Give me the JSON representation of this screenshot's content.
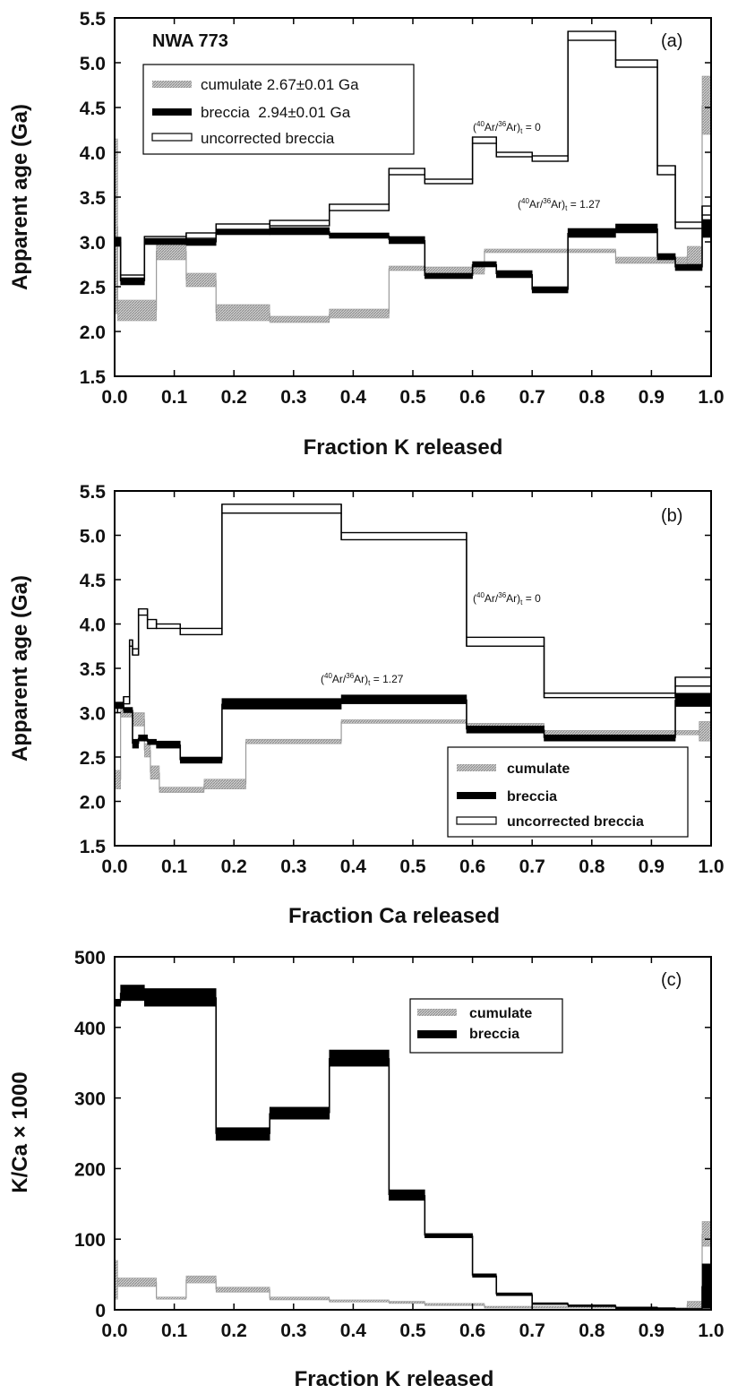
{
  "colors": {
    "cumulate": "#a9a9a9",
    "breccia": "#000000",
    "uncorrected": "#000000"
  },
  "chart_data": [
    {
      "panel": "(a)",
      "type": "line",
      "title": "NWA 773",
      "xlabel": "Fraction K released",
      "ylabel": "Apparent age (Ga)",
      "xlim": [
        0,
        1
      ],
      "ylim": [
        1.5,
        5.5
      ],
      "xticks": [
        "0.0",
        "0.1",
        "0.2",
        "0.3",
        "0.4",
        "0.5",
        "0.6",
        "0.7",
        "0.8",
        "0.9",
        "1.0"
      ],
      "yticks": [
        "1.5",
        "2.0",
        "2.5",
        "3.0",
        "3.5",
        "4.0",
        "4.5",
        "5.0",
        "5.5"
      ],
      "legend": [
        "cumulate 2.67±0.01 Ga",
        "breccia  2.94±0.01 Ga",
        "uncorrected breccia"
      ],
      "legend_position": "top-left",
      "annotations": [
        {
          "pre": "(",
          "sup": "40",
          "mid": "Ar/",
          "sup2": "36",
          "post": "Ar)",
          "sub": "t",
          "tail": " = 0",
          "x": 0.6,
          "y": 4.18
        },
        {
          "pre": "(",
          "sup": "40",
          "mid": "Ar/",
          "sup2": "36",
          "post": "Ar)",
          "sub": "t",
          "tail": " = 1.27",
          "x": 0.675,
          "y": 3.35
        }
      ],
      "series": [
        {
          "name": "uncorrected breccia",
          "style": "open",
          "steps": [
            [
              0.0,
              0.01,
              3.0,
              3.05
            ],
            [
              0.01,
              0.05,
              2.57,
              2.63
            ],
            [
              0.05,
              0.12,
              3.0,
              3.06
            ],
            [
              0.12,
              0.17,
              3.04,
              3.1
            ],
            [
              0.17,
              0.26,
              3.14,
              3.2
            ],
            [
              0.26,
              0.36,
              3.18,
              3.24
            ],
            [
              0.36,
              0.46,
              3.35,
              3.42
            ],
            [
              0.46,
              0.52,
              3.75,
              3.82
            ],
            [
              0.52,
              0.6,
              3.65,
              3.7
            ],
            [
              0.6,
              0.64,
              4.1,
              4.17
            ],
            [
              0.64,
              0.7,
              3.95,
              4.0
            ],
            [
              0.7,
              0.76,
              3.9,
              3.96
            ],
            [
              0.76,
              0.84,
              5.25,
              5.35
            ],
            [
              0.84,
              0.91,
              4.95,
              5.03
            ],
            [
              0.91,
              0.94,
              3.75,
              3.85
            ],
            [
              0.94,
              0.985,
              3.15,
              3.22
            ],
            [
              0.985,
              1.0,
              3.3,
              3.4
            ]
          ]
        },
        {
          "name": "breccia",
          "style": "filled",
          "steps": [
            [
              0.0,
              0.01,
              2.95,
              3.05
            ],
            [
              0.01,
              0.05,
              2.52,
              2.6
            ],
            [
              0.05,
              0.12,
              2.97,
              3.04
            ],
            [
              0.12,
              0.17,
              2.96,
              3.03
            ],
            [
              0.17,
              0.26,
              3.08,
              3.14
            ],
            [
              0.26,
              0.36,
              3.08,
              3.16
            ],
            [
              0.36,
              0.46,
              3.04,
              3.1
            ],
            [
              0.46,
              0.52,
              2.98,
              3.06
            ],
            [
              0.52,
              0.6,
              2.59,
              2.65
            ],
            [
              0.6,
              0.64,
              2.72,
              2.78
            ],
            [
              0.64,
              0.7,
              2.6,
              2.68
            ],
            [
              0.7,
              0.76,
              2.43,
              2.5
            ],
            [
              0.76,
              0.84,
              3.05,
              3.15
            ],
            [
              0.84,
              0.91,
              3.1,
              3.2
            ],
            [
              0.91,
              0.94,
              2.8,
              2.87
            ],
            [
              0.94,
              0.985,
              2.68,
              2.75
            ],
            [
              0.985,
              1.0,
              3.05,
              3.25
            ]
          ]
        },
        {
          "name": "cumulate",
          "style": "hatched",
          "steps": [
            [
              0.0,
              0.005,
              2.2,
              4.15
            ],
            [
              0.005,
              0.07,
              2.12,
              2.35
            ],
            [
              0.07,
              0.12,
              2.8,
              3.0
            ],
            [
              0.12,
              0.17,
              2.5,
              2.65
            ],
            [
              0.17,
              0.26,
              2.12,
              2.3
            ],
            [
              0.26,
              0.36,
              2.1,
              2.17
            ],
            [
              0.36,
              0.46,
              2.15,
              2.25
            ],
            [
              0.46,
              0.52,
              2.68,
              2.73
            ],
            [
              0.52,
              0.62,
              2.64,
              2.72
            ],
            [
              0.62,
              0.84,
              2.88,
              2.92
            ],
            [
              0.84,
              0.96,
              2.76,
              2.83
            ],
            [
              0.96,
              0.985,
              2.75,
              2.95
            ],
            [
              0.985,
              1.0,
              4.2,
              4.85
            ]
          ]
        }
      ]
    },
    {
      "panel": "(b)",
      "type": "line",
      "xlabel": "Fraction Ca released",
      "ylabel": "Apparent age (Ga)",
      "xlim": [
        0,
        1
      ],
      "ylim": [
        1.5,
        5.5
      ],
      "xticks": [
        "0.0",
        "0.1",
        "0.2",
        "0.3",
        "0.4",
        "0.5",
        "0.6",
        "0.7",
        "0.8",
        "0.9",
        "1.0"
      ],
      "yticks": [
        "1.5",
        "2.0",
        "2.5",
        "3.0",
        "3.5",
        "4.0",
        "4.5",
        "5.0",
        "5.5"
      ],
      "legend": [
        "cumulate",
        "breccia",
        "uncorrected breccia"
      ],
      "legend_position": "bottom-right",
      "annotations": [
        {
          "pre": "(",
          "sup": "40",
          "mid": "Ar/",
          "sup2": "36",
          "post": "Ar)",
          "sub": "t",
          "tail": " = 0",
          "x": 0.6,
          "y": 4.22
        },
        {
          "pre": "(",
          "sup": "40",
          "mid": "Ar/",
          "sup2": "36",
          "post": "Ar)",
          "sub": "t",
          "tail": " = 1.27",
          "x": 0.35,
          "y": 3.27
        }
      ],
      "series": [
        {
          "name": "uncorrected breccia",
          "style": "open",
          "steps": [
            [
              0.0,
              0.005,
              3.0,
              3.05
            ],
            [
              0.005,
              0.015,
              3.05,
              3.1
            ],
            [
              0.015,
              0.025,
              3.1,
              3.18
            ],
            [
              0.025,
              0.03,
              3.75,
              3.82
            ],
            [
              0.03,
              0.04,
              3.65,
              3.72
            ],
            [
              0.04,
              0.055,
              4.1,
              4.17
            ],
            [
              0.055,
              0.07,
              3.95,
              4.05
            ],
            [
              0.07,
              0.11,
              3.95,
              4.0
            ],
            [
              0.11,
              0.18,
              3.88,
              3.95
            ],
            [
              0.18,
              0.38,
              5.25,
              5.35
            ],
            [
              0.38,
              0.59,
              4.95,
              5.03
            ],
            [
              0.59,
              0.72,
              3.75,
              3.85
            ],
            [
              0.72,
              0.94,
              3.17,
              3.22
            ],
            [
              0.94,
              1.0,
              3.3,
              3.4
            ]
          ]
        },
        {
          "name": "breccia",
          "style": "filled",
          "steps": [
            [
              0.0,
              0.015,
              3.05,
              3.12
            ],
            [
              0.015,
              0.03,
              3.0,
              3.06
            ],
            [
              0.03,
              0.04,
              2.6,
              2.7
            ],
            [
              0.04,
              0.055,
              2.68,
              2.75
            ],
            [
              0.055,
              0.07,
              2.64,
              2.7
            ],
            [
              0.07,
              0.11,
              2.6,
              2.68
            ],
            [
              0.11,
              0.18,
              2.43,
              2.5
            ],
            [
              0.18,
              0.38,
              3.04,
              3.16
            ],
            [
              0.38,
              0.59,
              3.1,
              3.2
            ],
            [
              0.59,
              0.72,
              2.77,
              2.85
            ],
            [
              0.72,
              0.94,
              2.68,
              2.75
            ],
            [
              0.94,
              1.0,
              3.07,
              3.22
            ]
          ]
        },
        {
          "name": "cumulate",
          "style": "hatched",
          "steps": [
            [
              0.0,
              0.01,
              2.14,
              2.35
            ],
            [
              0.01,
              0.03,
              2.95,
              3.05
            ],
            [
              0.03,
              0.05,
              2.85,
              3.0
            ],
            [
              0.05,
              0.06,
              2.5,
              2.65
            ],
            [
              0.06,
              0.075,
              2.25,
              2.4
            ],
            [
              0.075,
              0.15,
              2.1,
              2.16
            ],
            [
              0.15,
              0.22,
              2.14,
              2.25
            ],
            [
              0.22,
              0.38,
              2.65,
              2.7
            ],
            [
              0.38,
              0.59,
              2.88,
              2.92
            ],
            [
              0.59,
              0.72,
              2.85,
              2.88
            ],
            [
              0.72,
              0.94,
              2.75,
              2.8
            ],
            [
              0.94,
              0.98,
              2.75,
              2.8
            ],
            [
              0.98,
              1.0,
              2.68,
              2.9
            ]
          ]
        }
      ]
    },
    {
      "panel": "(c)",
      "type": "line",
      "xlabel": "Fraction K released",
      "ylabel": "K/Ca × 1000",
      "xlim": [
        0,
        1
      ],
      "ylim": [
        0,
        500
      ],
      "xticks": [
        "0.0",
        "0.1",
        "0.2",
        "0.3",
        "0.4",
        "0.5",
        "0.6",
        "0.7",
        "0.8",
        "0.9",
        "1.0"
      ],
      "yticks": [
        "0",
        "100",
        "200",
        "300",
        "400",
        "500"
      ],
      "legend": [
        "cumulate",
        "breccia"
      ],
      "legend_position": "top-right",
      "series": [
        {
          "name": "breccia",
          "style": "filled",
          "steps": [
            [
              0.0,
              0.01,
              430,
              440
            ],
            [
              0.01,
              0.05,
              438,
              460
            ],
            [
              0.05,
              0.17,
              430,
              455
            ],
            [
              0.17,
              0.26,
              240,
              258
            ],
            [
              0.26,
              0.36,
              270,
              287
            ],
            [
              0.36,
              0.46,
              345,
              368
            ],
            [
              0.46,
              0.52,
              155,
              170
            ],
            [
              0.52,
              0.6,
              102,
              108
            ],
            [
              0.6,
              0.64,
              46,
              51
            ],
            [
              0.64,
              0.7,
              20,
              24
            ],
            [
              0.7,
              0.76,
              8,
              10
            ],
            [
              0.76,
              0.84,
              5,
              7
            ],
            [
              0.84,
              0.91,
              3,
              4
            ],
            [
              0.91,
              0.94,
              2,
              3
            ],
            [
              0.94,
              0.985,
              1,
              2
            ],
            [
              0.985,
              1.0,
              2,
              65
            ]
          ]
        },
        {
          "name": "cumulate",
          "style": "hatched",
          "steps": [
            [
              0.0,
              0.005,
              15,
              70
            ],
            [
              0.005,
              0.07,
              33,
              45
            ],
            [
              0.07,
              0.12,
              15,
              18
            ],
            [
              0.12,
              0.17,
              38,
              48
            ],
            [
              0.17,
              0.26,
              25,
              32
            ],
            [
              0.26,
              0.36,
              14,
              18
            ],
            [
              0.36,
              0.46,
              11,
              14
            ],
            [
              0.46,
              0.52,
              9,
              12
            ],
            [
              0.52,
              0.62,
              6,
              9
            ],
            [
              0.62,
              0.84,
              3,
              5
            ],
            [
              0.84,
              0.96,
              2,
              3
            ],
            [
              0.96,
              0.985,
              3,
              12
            ],
            [
              0.985,
              1.0,
              90,
              125
            ]
          ]
        }
      ]
    }
  ]
}
